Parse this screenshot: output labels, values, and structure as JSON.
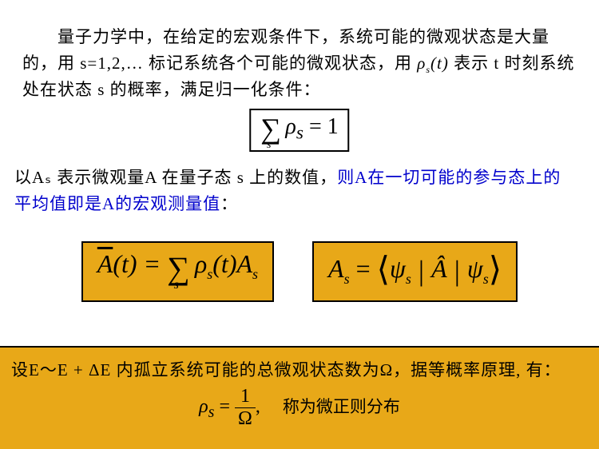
{
  "colors": {
    "text": "#000000",
    "blue": "#0000cc",
    "orange_bg": "#e8a818",
    "border": "#000000",
    "background": "#ffffff"
  },
  "typography": {
    "body_font": "SimSun",
    "math_font": "Times New Roman",
    "body_fontsize": 21,
    "eq_box_fontsize": 28,
    "orange_eq_fontsize": 32
  },
  "para1": {
    "text_before_rho": "　　量子力学中，在给定的宏观条件下，系统可能的微观状态是大量的，用 s=1,2,… 标记系统各个可能的微观状态，用 ",
    "rho_expr": "ρ",
    "rho_sub": "s",
    "rho_arg": "(t)",
    "text_after_rho": " 表示 t 时刻系统处在状态 s 的概率，满足归一化条件："
  },
  "eq1": {
    "expression": "∑ₛ ρₛ = 1",
    "sigma": "∑",
    "sub": "s",
    "body": "ρ",
    "body_sub": "s",
    "rhs": " = 1"
  },
  "para2": {
    "text_before": "以Aₛ 表示微观量A 在量子态 s 上的数值，",
    "blue_text": "则A在一切可能的参与态上的平均值即是A的宏观测量值",
    "text_after": "："
  },
  "eq2_left": {
    "expression": "Ā(t) = ∑ₛ ρₛ(t) Aₛ",
    "Abar": "A",
    "arg": "(t) = ",
    "sigma": "∑",
    "sigma_sub": "s",
    "rho": "ρ",
    "rho_sub": "s",
    "rho_arg": "(t)A",
    "A_sub": "s"
  },
  "eq2_right": {
    "expression": "Aₛ = ⟨ψₛ | Â | ψₛ⟩",
    "A": "A",
    "A_sub": "s",
    "eq": " = ",
    "lbracket": "⟨",
    "psi1": "ψ",
    "psi1_sub": "s",
    "bar1": " | ",
    "Ahat": "Â",
    "bar2": " | ",
    "psi2": "ψ",
    "psi2_sub": "s",
    "rbracket": "⟩"
  },
  "bottom": {
    "line1": "设E～E + ΔE 内孤立系统可能的总微观状态数为Ω，据等概率原理, 有：",
    "eq_lhs": "ρ",
    "eq_lhs_sub": "s",
    "eq_eq": " = ",
    "frac_num": "1",
    "frac_den": "Ω",
    "comma": ",",
    "label": "称为微正则分布"
  }
}
